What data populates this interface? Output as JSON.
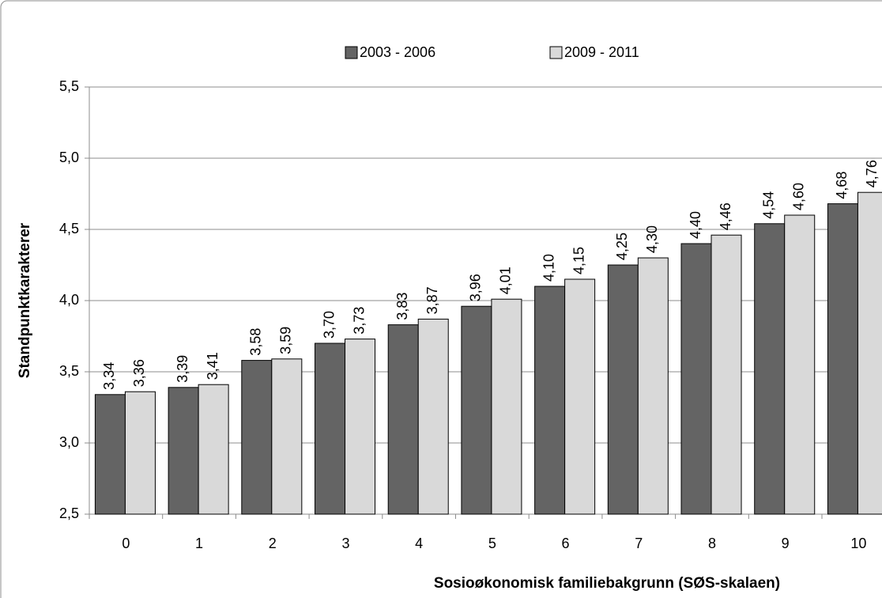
{
  "chart_data": {
    "type": "bar",
    "x_label": "Sosioøkonomisk familiebakgrunn (SØS-skalaen)",
    "y_label": "Standpunktkarakterer",
    "categories": [
      "0",
      "1",
      "2",
      "3",
      "4",
      "5",
      "6",
      "7",
      "8",
      "9",
      "10"
    ],
    "series": [
      {
        "name": "2003 - 2006",
        "color": "#646464",
        "values": [
          3.34,
          3.39,
          3.58,
          3.7,
          3.83,
          3.96,
          4.1,
          4.25,
          4.4,
          4.54,
          4.68
        ],
        "value_labels": [
          "3,34",
          "3,39",
          "3,58",
          "3,70",
          "3,83",
          "3,96",
          "4,10",
          "4,25",
          "4,40",
          "4,54",
          "4,68"
        ]
      },
      {
        "name": "2009 - 2011",
        "color": "#d9d9d9",
        "values": [
          3.36,
          3.41,
          3.59,
          3.73,
          3.87,
          4.01,
          4.15,
          4.3,
          4.46,
          4.6,
          4.76
        ],
        "value_labels": [
          "3,36",
          "3,41",
          "3,59",
          "3,73",
          "3,87",
          "4,01",
          "4,15",
          "4,30",
          "4,46",
          "4,60",
          "4,76"
        ]
      }
    ],
    "ylim": [
      2.5,
      5.5
    ],
    "yticks": [
      {
        "value": 2.5,
        "label": "2,5"
      },
      {
        "value": 3.0,
        "label": "3,0"
      },
      {
        "value": 3.5,
        "label": "3,5"
      },
      {
        "value": 4.0,
        "label": "4,0"
      },
      {
        "value": 4.5,
        "label": "4,5"
      },
      {
        "value": 5.0,
        "label": "5,0"
      },
      {
        "value": 5.5,
        "label": "5,5"
      }
    ],
    "grid": true,
    "legend": "top"
  }
}
